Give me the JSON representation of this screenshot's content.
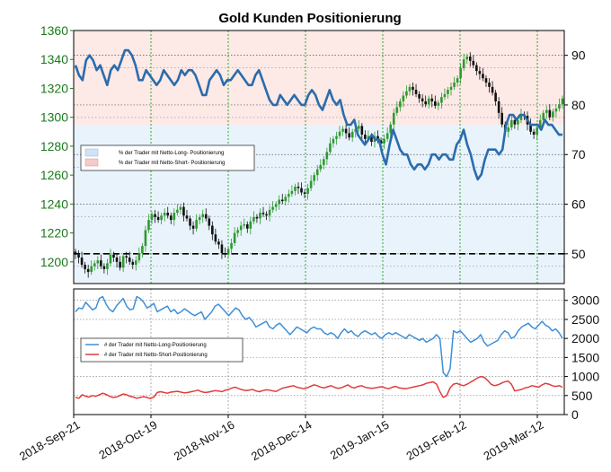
{
  "chart_data": [
    {
      "type": "candlestick+line",
      "title": "Gold Kunden Positionierung",
      "x_tick_labels": [
        "2018-Sep-21",
        "2018-Oct-19",
        "2018-Nov-16",
        "2018-Dec-14",
        "2019-Jan-15",
        "2019-Feb-12",
        "2019-Mar-12"
      ],
      "left_axis": {
        "ylim": [
          1185,
          1360
        ],
        "ticks": [
          1200,
          1220,
          1240,
          1260,
          1280,
          1300,
          1320,
          1340,
          1360
        ],
        "color": "#1a7a1a"
      },
      "right_axis": {
        "ylim": [
          44,
          95
        ],
        "ticks": [
          50,
          60,
          70,
          80,
          90
        ]
      },
      "reference_line": 50,
      "legend": {
        "placement": "upper-left",
        "entries": [
          {
            "label": "% der Trader mit Netto-Long- Positionierung",
            "color": "#cfe2f7"
          },
          {
            "label": "% der Trader mit Netto-Short- Positionierung",
            "color": "#f7c9c9"
          }
        ]
      },
      "series": [
        {
          "kind": "candlestick",
          "values": [
            1205,
            1203,
            1198,
            1195,
            1193,
            1197,
            1199,
            1201,
            1197,
            1195,
            1199,
            1205,
            1203,
            1200,
            1196,
            1204,
            1203,
            1200,
            1198,
            1201,
            1206,
            1211,
            1222,
            1229,
            1233,
            1231,
            1229,
            1232,
            1234,
            1232,
            1229,
            1234,
            1236,
            1238,
            1232,
            1230,
            1225,
            1223,
            1229,
            1231,
            1233,
            1230,
            1225,
            1219,
            1214,
            1212,
            1206,
            1205,
            1209,
            1213,
            1220,
            1222,
            1225,
            1226,
            1223,
            1228,
            1231,
            1230,
            1234,
            1233,
            1232,
            1236,
            1238,
            1240,
            1243,
            1242,
            1245,
            1247,
            1249,
            1252,
            1251,
            1248,
            1247,
            1251,
            1256,
            1260,
            1264,
            1267,
            1271,
            1276,
            1282,
            1285,
            1287,
            1290,
            1292,
            1289,
            1286,
            1290,
            1292,
            1294,
            1288,
            1285,
            1287,
            1283,
            1287,
            1284,
            1282,
            1285,
            1289,
            1295,
            1303,
            1307,
            1311,
            1315,
            1318,
            1321,
            1319,
            1316,
            1313,
            1311,
            1309,
            1313,
            1311,
            1308,
            1310,
            1314,
            1316,
            1319,
            1321,
            1324,
            1327,
            1334,
            1340,
            1342,
            1339,
            1336,
            1332,
            1330,
            1327,
            1324,
            1321,
            1317,
            1311,
            1303,
            1295,
            1290,
            1293,
            1298,
            1295,
            1298,
            1302,
            1301,
            1295,
            1290,
            1288,
            1293,
            1298,
            1303,
            1305,
            1300,
            1304,
            1306,
            1309,
            1313
          ]
        },
        {
          "name": "% der Trader mit Netto-Long- Positionierung",
          "color": "#2a6cad",
          "values": [
            88,
            86,
            85,
            89,
            90,
            89,
            87,
            88,
            86,
            84,
            87,
            88,
            87,
            89,
            91,
            91,
            90,
            88,
            85,
            85,
            87,
            86,
            85,
            84,
            85,
            87,
            86,
            85,
            84,
            85,
            87,
            86,
            87,
            87,
            86,
            84,
            82,
            82,
            85,
            86,
            87,
            86,
            84,
            85,
            85,
            86,
            87,
            86,
            85,
            84,
            84,
            86,
            87,
            85,
            83,
            81,
            80,
            80,
            82,
            81,
            80,
            81,
            82,
            81,
            80,
            80,
            82,
            83,
            82,
            80,
            79,
            81,
            83,
            81,
            80,
            81,
            78,
            76,
            76,
            77,
            74,
            73,
            72,
            73,
            74,
            73,
            73,
            70,
            68,
            72,
            75,
            73,
            71,
            70,
            70,
            68,
            67,
            68,
            68,
            67,
            68,
            70,
            70,
            69,
            70,
            70,
            69,
            69,
            72,
            73,
            75,
            72,
            70,
            67,
            65,
            66,
            69,
            71,
            71,
            71,
            70,
            71,
            76,
            78,
            78,
            77,
            78,
            78,
            77,
            76,
            76,
            76,
            75,
            77,
            76,
            76,
            75,
            74,
            74
          ]
        }
      ]
    },
    {
      "type": "line",
      "x_tick_labels": [
        "2018-Sep-21",
        "2018-Oct-19",
        "2018-Nov-16",
        "2018-Dec-14",
        "2019-Jan-15",
        "2019-Feb-12",
        "2019-Mar-12"
      ],
      "ylim": [
        0,
        3300
      ],
      "yticks": [
        0,
        500,
        1000,
        1500,
        2000,
        2500,
        3000
      ],
      "legend": {
        "placement": "upper-left",
        "entries": [
          {
            "label": "# der Trader mit Netto-Long-Positionierung",
            "color": "#3f8fd8"
          },
          {
            "label": "# der Trader mit Netto-Short-Positionierung",
            "color": "#e23b3b"
          }
        ]
      },
      "series": [
        {
          "name": "# der Trader mit Netto-Long-Positionierung",
          "color": "#3f8fd8",
          "values": [
            2700,
            2800,
            2780,
            2950,
            2850,
            2750,
            2800,
            3050,
            3100,
            2900,
            2760,
            2700,
            2850,
            2950,
            3050,
            2850,
            2750,
            2780,
            3100,
            3050,
            2950,
            2800,
            2850,
            2920,
            2700,
            2750,
            2800,
            2850,
            2700,
            2760,
            2650,
            2700,
            2780,
            2720,
            2650,
            2600,
            2650,
            2700,
            2500,
            2600,
            2700,
            2850,
            2900,
            2800,
            2700,
            2600,
            2700,
            2800,
            2750,
            2600,
            2500,
            2550,
            2450,
            2300,
            2350,
            2400,
            2450,
            2300,
            2250,
            2350,
            2400,
            2300,
            2200,
            2100,
            2200,
            2300,
            2250,
            2200,
            2150,
            2250,
            2300,
            2250,
            2250,
            2150,
            2100,
            2150,
            2100,
            2000,
            2150,
            2250,
            2150,
            2200,
            2100,
            2050,
            2150,
            2200,
            2150,
            2100,
            2150,
            2050,
            2000,
            2100,
            2150,
            2100,
            2150,
            2100,
            2050,
            2000,
            2100,
            2050,
            2000,
            1950,
            2000,
            1900,
            1950,
            2000,
            2100,
            2000,
            1100,
            1000,
            1200,
            2200,
            2150,
            2200,
            2100,
            2000,
            1900,
            1950,
            2000,
            2100,
            1900,
            1800,
            1850,
            1900,
            1950,
            2100,
            2200,
            2150,
            2000,
            2050,
            2200,
            2300,
            2350,
            2400,
            2300,
            2250,
            2350,
            2450,
            2350,
            2300,
            2200,
            2250,
            2150,
            2000
          ]
        },
        {
          "name": "# der Trader mit Netto-Short-Positionierung",
          "color": "#e23b3b",
          "values": [
            450,
            430,
            520,
            480,
            460,
            500,
            480,
            520,
            560,
            530,
            480,
            450,
            460,
            500,
            540,
            520,
            480,
            460,
            430,
            450,
            470,
            450,
            420,
            460,
            580,
            600,
            580,
            560,
            590,
            600,
            610,
            590,
            570,
            580,
            600,
            620,
            640,
            600,
            580,
            590,
            610,
            630,
            620,
            600,
            640,
            660,
            700,
            720,
            680,
            650,
            630,
            640,
            660,
            620,
            600,
            630,
            650,
            640,
            620,
            610,
            660,
            700,
            720,
            740,
            760,
            720,
            700,
            680,
            700,
            740,
            780,
            760,
            720,
            700,
            730,
            760,
            720,
            690,
            700,
            740,
            780,
            720,
            700,
            740,
            760,
            720,
            700,
            690,
            700,
            720,
            730,
            700,
            680,
            720,
            740,
            700,
            690,
            680,
            700,
            720,
            740,
            760,
            780,
            820,
            840,
            860,
            800,
            600,
            450,
            500,
            700,
            800,
            820,
            780,
            760,
            800,
            850,
            900,
            960,
            1000,
            980,
            900,
            800,
            760,
            780,
            820,
            860,
            880,
            800,
            620,
            640,
            660,
            700,
            720,
            760,
            740,
            720,
            780,
            820,
            800,
            760,
            740,
            760,
            720
          ]
        }
      ]
    }
  ]
}
